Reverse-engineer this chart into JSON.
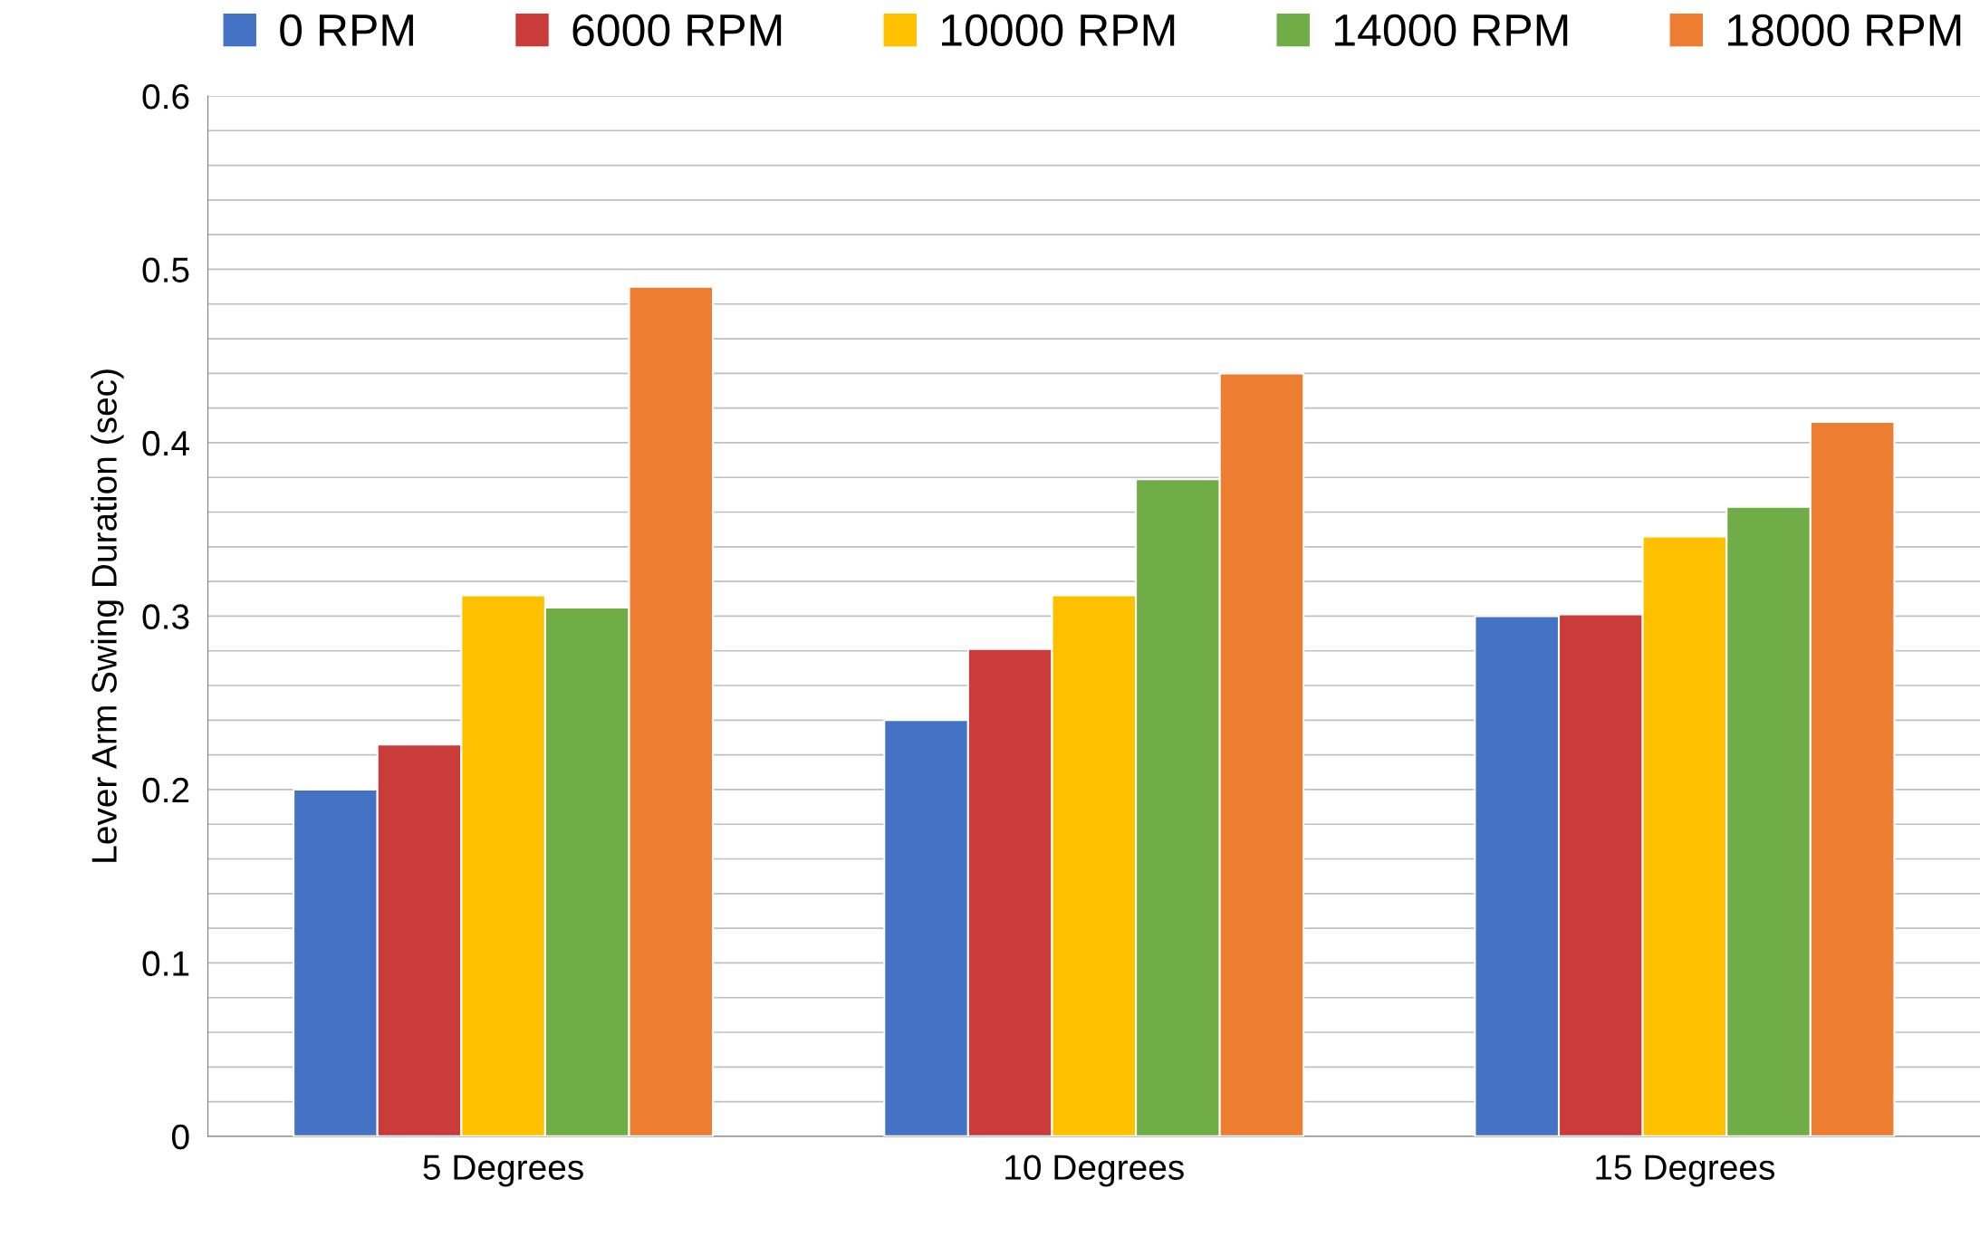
{
  "chart_data": {
    "type": "bar",
    "ylabel": "Lever Arm Swing Duration (sec)",
    "categories": [
      "5 Degrees",
      "10 Degrees",
      "15 Degrees"
    ],
    "series": [
      {
        "name": "0 RPM",
        "color": "#4472c4",
        "values": [
          0.2,
          0.24,
          0.3
        ]
      },
      {
        "name": "6000 RPM",
        "color": "#c93c3a",
        "values": [
          0.226,
          0.281,
          0.301
        ]
      },
      {
        "name": "10000 RPM",
        "color": "#ffc000",
        "values": [
          0.312,
          0.312,
          0.346
        ]
      },
      {
        "name": "14000 RPM",
        "color": "#70ad47",
        "values": [
          0.305,
          0.379,
          0.363
        ]
      },
      {
        "name": "18000 RPM",
        "color": "#ed7d31",
        "values": [
          0.49,
          0.44,
          0.412
        ]
      }
    ],
    "ylim": [
      0,
      0.6
    ],
    "yticks": [
      0,
      {
        "value": 0.02,
        "label": null
      },
      {
        "value": 0.04,
        "label": null
      },
      {
        "value": 0.06,
        "label": null
      },
      {
        "value": 0.08,
        "label": null
      },
      0.1,
      {
        "value": 0.12,
        "label": null
      },
      {
        "value": 0.14,
        "label": null
      },
      {
        "value": 0.16,
        "label": null
      },
      {
        "value": 0.18,
        "label": null
      },
      0.2,
      {
        "value": 0.22,
        "label": null
      },
      {
        "value": 0.24,
        "label": null
      },
      {
        "value": 0.26,
        "label": null
      },
      {
        "value": 0.28,
        "label": null
      },
      0.3,
      {
        "value": 0.32,
        "label": null
      },
      {
        "value": 0.34,
        "label": null
      },
      {
        "value": 0.36,
        "label": null
      },
      {
        "value": 0.38,
        "label": null
      },
      0.4,
      {
        "value": 0.42,
        "label": null
      },
      {
        "value": 0.44,
        "label": null
      },
      {
        "value": 0.46,
        "label": null
      },
      {
        "value": 0.48,
        "label": null
      },
      0.5,
      {
        "value": 0.52,
        "label": null
      },
      {
        "value": 0.54,
        "label": null
      },
      {
        "value": 0.56,
        "label": null
      },
      {
        "value": 0.58,
        "label": null
      },
      0.6
    ],
    "grid": "y",
    "legend": "top"
  }
}
